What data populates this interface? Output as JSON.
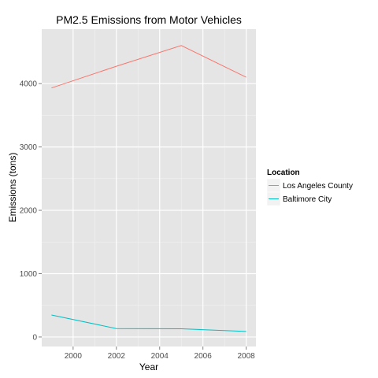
{
  "chart_data": {
    "type": "line",
    "title": "PM2.5 Emissions from Motor Vehicles",
    "xlabel": "Year",
    "ylabel": "Emissions (tons)",
    "x": [
      1999,
      2002,
      2005,
      2008
    ],
    "xlim": [
      1998.55,
      2008.45
    ],
    "ylim": [
      -150,
      4860
    ],
    "xticks": [
      2000,
      2002,
      2004,
      2006,
      2008
    ],
    "yticks": [
      0,
      1000,
      2000,
      3000,
      4000
    ],
    "grid": true,
    "legend": {
      "title": "Location",
      "placement": "right"
    },
    "series": [
      {
        "name": "Los Angeles County",
        "color": "#f8766d",
        "values": [
          3931,
          4275,
          4601,
          4101
        ]
      },
      {
        "name": "Baltimore City",
        "color": "#00bfc4",
        "values": [
          347,
          134,
          130,
          88
        ]
      }
    ]
  }
}
